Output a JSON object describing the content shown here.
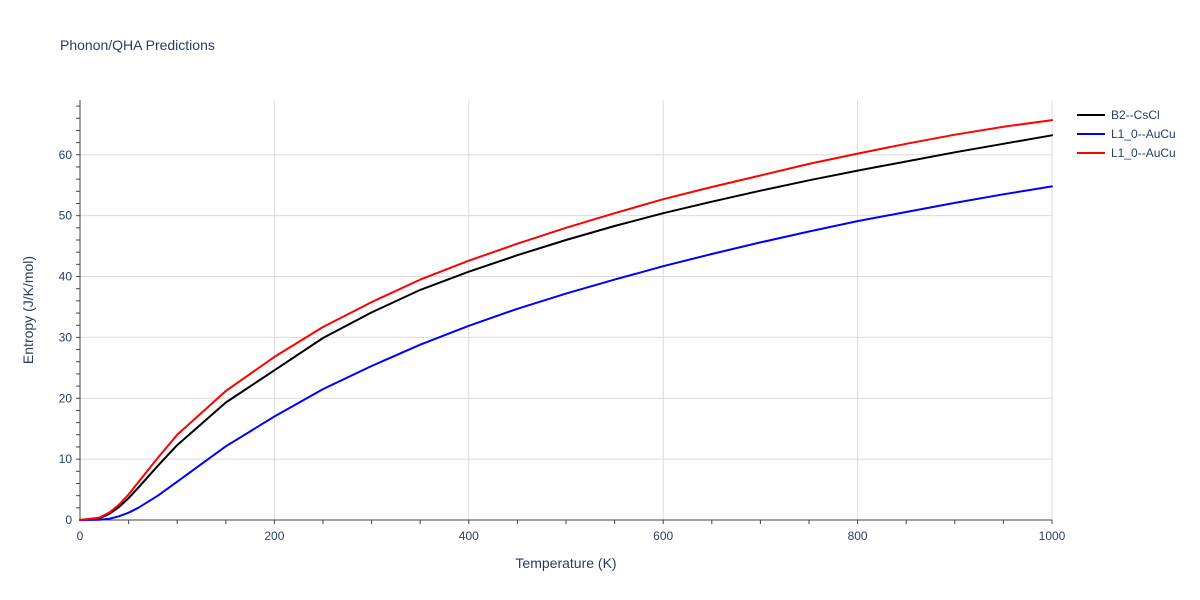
{
  "chart_data": {
    "type": "line",
    "title": "Phonon/QHA Predictions",
    "xlabel": "Temperature (K)",
    "ylabel": "Entropy (J/K/mol)",
    "xlim": [
      0,
      1000
    ],
    "ylim": [
      0,
      69
    ],
    "xticks": [
      0,
      200,
      400,
      600,
      800,
      1000
    ],
    "yticks": [
      0,
      10,
      20,
      30,
      40,
      50,
      60
    ],
    "grid": true,
    "legend_position": "top-right",
    "x": [
      0,
      20,
      30,
      40,
      50,
      60,
      80,
      100,
      150,
      200,
      250,
      300,
      350,
      400,
      450,
      500,
      550,
      600,
      650,
      700,
      750,
      800,
      850,
      900,
      950,
      1000
    ],
    "series": [
      {
        "name": "B2--CsCl",
        "color": "#000000",
        "values": [
          0,
          0.3,
          1.0,
          2.1,
          3.6,
          5.3,
          8.9,
          12.3,
          19.3,
          24.6,
          29.9,
          34.1,
          37.8,
          40.8,
          43.5,
          46.0,
          48.3,
          50.4,
          52.3,
          54.1,
          55.8,
          57.4,
          58.9,
          60.4,
          61.8,
          63.2
        ]
      },
      {
        "name": "L1_0--AuCu",
        "color": "#0000ff",
        "values": [
          0,
          0.05,
          0.2,
          0.6,
          1.2,
          2.0,
          4.0,
          6.3,
          12.1,
          17.0,
          21.5,
          25.3,
          28.8,
          31.9,
          34.7,
          37.2,
          39.5,
          41.7,
          43.7,
          45.6,
          47.4,
          49.1,
          50.6,
          52.1,
          53.5,
          54.8
        ]
      },
      {
        "name": "L1_0--AuCu",
        "color": "#ff0000",
        "values": [
          0,
          0.4,
          1.2,
          2.5,
          4.2,
          6.2,
          10.2,
          14.0,
          21.2,
          26.8,
          31.7,
          35.8,
          39.5,
          42.6,
          45.4,
          48.0,
          50.4,
          52.7,
          54.7,
          56.6,
          58.5,
          60.2,
          61.8,
          63.3,
          64.6,
          65.7
        ]
      }
    ]
  }
}
